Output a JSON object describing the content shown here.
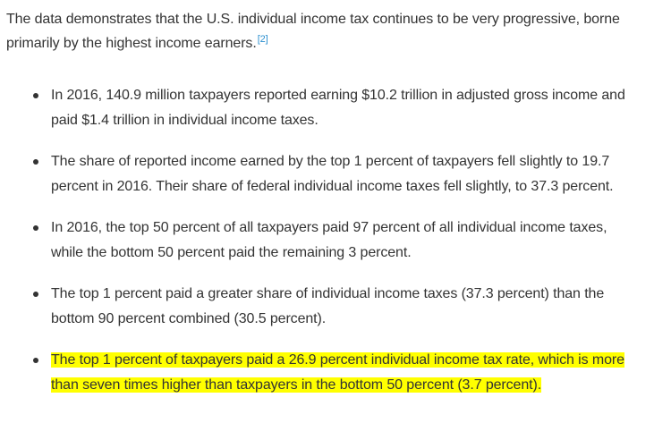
{
  "intro": {
    "text": "The data demonstrates that the U.S. individual income tax continues to be very progressive, borne primarily by the highest income earners.",
    "footnote": "[2]"
  },
  "bullets": [
    {
      "text": "In 2016, 140.9 million taxpayers reported earning $10.2 trillion in adjusted gross income and paid $1.4 trillion in individual income taxes.",
      "highlighted": false
    },
    {
      "text": "The share of reported income earned by the top 1 percent of taxpayers fell slightly to 19.7 percent in 2016. Their share of federal individual income taxes fell slightly, to 37.3 percent.",
      "highlighted": false
    },
    {
      "text": "In 2016, the top 50 percent of all taxpayers paid 97 percent of all individual income taxes, while the bottom 50 percent paid the remaining 3 percent.",
      "highlighted": false
    },
    {
      "text": "The top 1 percent paid a greater share of individual income taxes (37.3 percent) than the bottom 90 percent combined (30.5 percent).",
      "highlighted": false
    },
    {
      "text": "The top 1 percent of taxpayers paid a 26.9 percent individual income tax rate, which is more than seven times higher than taxpayers in the bottom 50 percent (3.7 percent).",
      "highlighted": true
    }
  ],
  "colors": {
    "text": "#333333",
    "link": "#2a8fcf",
    "highlight": "#ffff00"
  }
}
